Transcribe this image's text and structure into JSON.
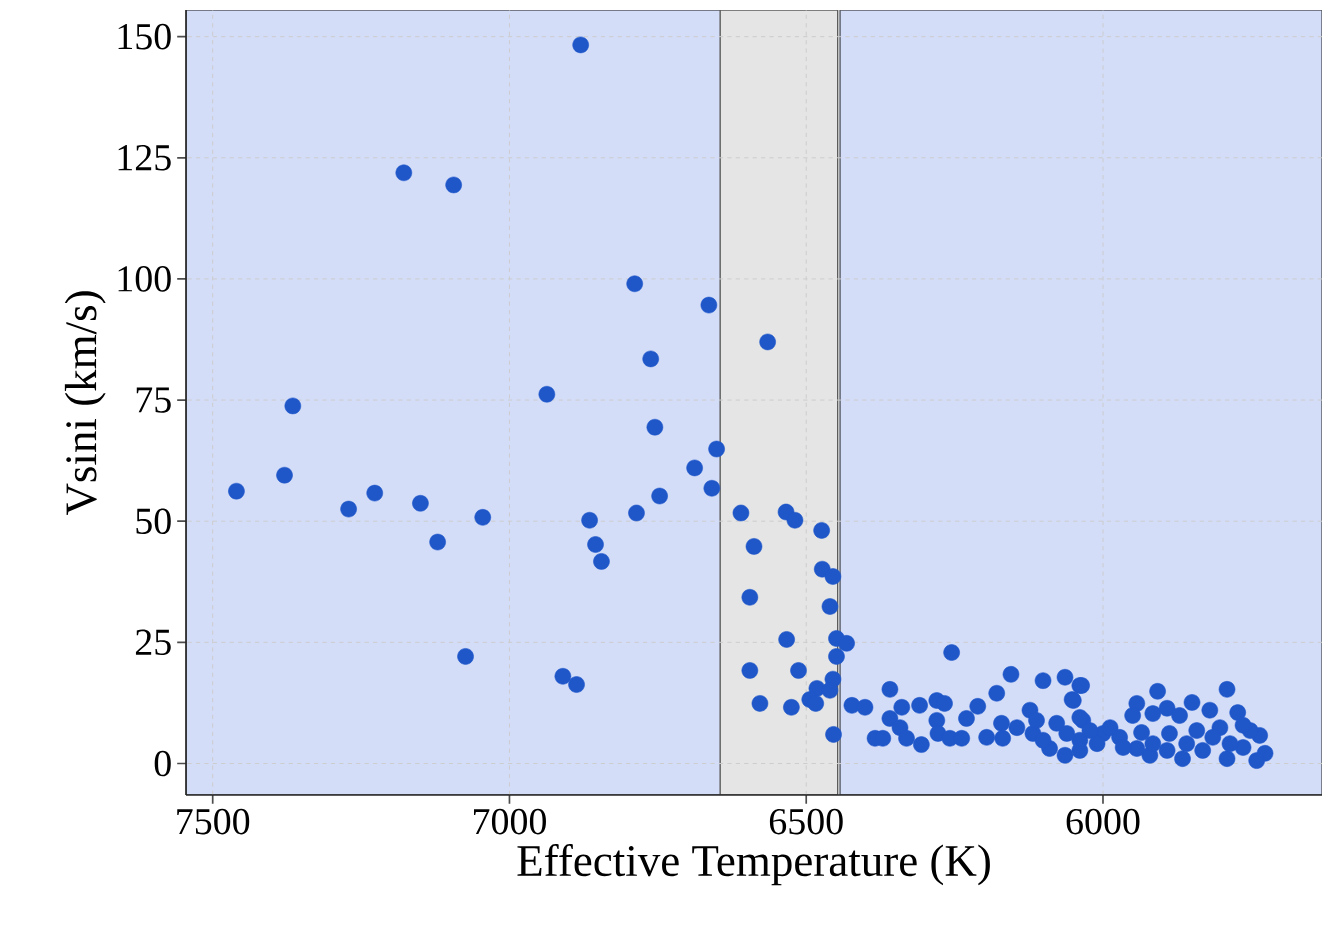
{
  "chart_data": {
    "type": "scatter",
    "xlabel": "Effective Temperature (K)",
    "ylabel": "Vsini (km/s)",
    "xlim": [
      7545,
      5631
    ],
    "ylim": [
      -6.5,
      155.5
    ],
    "xticks": [
      7500,
      7000,
      6500,
      6000
    ],
    "yticks": [
      0,
      25,
      50,
      75,
      100,
      125,
      150
    ],
    "grid": true,
    "bands": [
      {
        "axis": "x",
        "from": 7545,
        "to": 6642,
        "color": "#d4ddf8"
      },
      {
        "axis": "x",
        "from": 6645,
        "to": 6447,
        "color": "#e5e5e5"
      },
      {
        "axis": "x",
        "from": 6443,
        "to": 5631,
        "color": "#d4ddf8"
      }
    ],
    "series": [
      {
        "color": "#1f57c9",
        "x": [
          7460,
          7379,
          7365,
          7271,
          7227,
          7178,
          7150,
          7121,
          7094,
          7074,
          7045,
          6937,
          6910,
          6887,
          6880,
          6865,
          6855,
          6845,
          6789,
          6786,
          6762,
          6755,
          6747,
          6688,
          6664,
          6659,
          6651,
          6610,
          6565,
          6588,
          6595,
          6534,
          6519,
          6474,
          6473,
          6455,
          6460,
          6533,
          6449,
          6432,
          6449,
          6595,
          6513,
          6455,
          6482,
          6494,
          6484,
          6460,
          6578,
          6525,
          6454,
          6423,
          6401,
          6359,
          6255,
          6339,
          6309,
          6280,
          6267,
          6359,
          6342,
          6384,
          6371,
          6331,
          6306,
          6280,
          6278,
          6258,
          6238,
          6230,
          6211,
          6196,
          6179,
          6171,
          6169,
          6155,
          6145,
          6123,
          6101,
          6118,
          6090,
          6064,
          6039,
          6052,
          6064,
          6078,
          6034,
          6039,
          6112,
          6101,
          6061,
          6036,
          6050,
          6039,
          6039,
          6000,
          5972,
          5943,
          5950,
          5908,
          5916,
          5892,
          5871,
          5850,
          5820,
          5791,
          5773,
          5736,
          5727,
          5741,
          5791,
          5866,
          5921,
          5943,
          5892,
          5832,
          5764,
          5752,
          5803,
          5842,
          5888,
          5916,
          5966,
          6010,
          5988,
          6022,
          5859,
          5786,
          5764,
          5935,
          5815
        ],
        "values": [
          56.2,
          59.5,
          73.8,
          52.5,
          55.8,
          121.9,
          53.7,
          45.7,
          119.4,
          22.1,
          50.8,
          76.2,
          18.0,
          16.3,
          148.3,
          50.2,
          45.2,
          41.7,
          99.0,
          51.7,
          83.5,
          69.4,
          55.2,
          61.0,
          94.6,
          56.8,
          64.9,
          51.7,
          87.0,
          44.8,
          34.3,
          51.9,
          50.2,
          48.1,
          40.1,
          38.6,
          32.4,
          25.6,
          25.8,
          24.8,
          22.1,
          19.2,
          19.2,
          17.4,
          15.5,
          13.2,
          12.4,
          15.1,
          12.4,
          11.6,
          6.0,
          12.0,
          11.6,
          15.3,
          22.9,
          11.6,
          12.0,
          13.0,
          12.4,
          9.3,
          7.4,
          5.2,
          5.2,
          5.2,
          3.9,
          8.9,
          6.2,
          5.2,
          5.2,
          9.3,
          11.8,
          5.4,
          14.5,
          8.3,
          5.2,
          18.4,
          7.4,
          11.0,
          17.1,
          6.2,
          3.1,
          17.8,
          16.1,
          13.2,
          1.7,
          8.3,
          8.9,
          4.8,
          8.9,
          4.8,
          6.2,
          16.1,
          13.0,
          9.5,
          2.7,
          6.2,
          5.4,
          12.4,
          9.9,
          14.9,
          10.3,
          11.4,
          9.9,
          12.6,
          11.0,
          15.3,
          10.5,
          5.8,
          2.1,
          0.6,
          1.0,
          1.0,
          1.7,
          3.1,
          2.7,
          2.7,
          3.3,
          6.8,
          7.4,
          6.8,
          6.2,
          4.1,
          3.3,
          4.1,
          7.4,
          6.8,
          4.1,
          4.1,
          7.9,
          6.4,
          5.4
        ]
      }
    ]
  }
}
